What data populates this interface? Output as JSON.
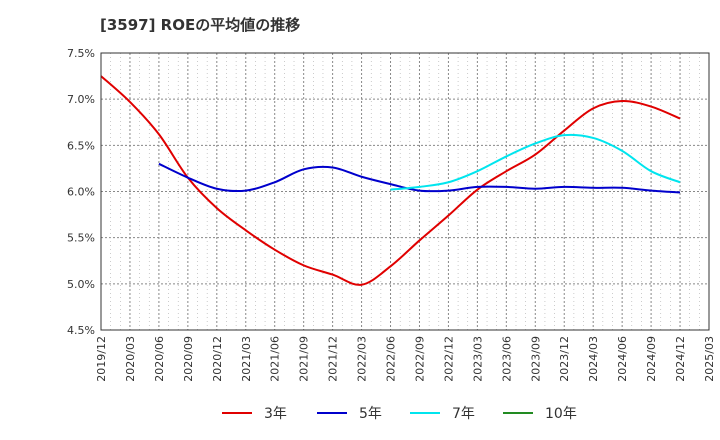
{
  "chart_data": {
    "type": "line",
    "title": "[3597]  ROEの平均値の推移",
    "xlabel": "",
    "ylabel": "",
    "ylim": [
      4.5,
      7.5
    ],
    "y_ticks": [
      "4.5%",
      "5.0%",
      "5.5%",
      "6.0%",
      "6.5%",
      "7.0%",
      "7.5%"
    ],
    "x_ticks": [
      "2019/12",
      "2020/03",
      "2020/06",
      "2020/09",
      "2020/12",
      "2021/03",
      "2021/06",
      "2021/09",
      "2021/12",
      "2022/03",
      "2022/06",
      "2022/09",
      "2022/12",
      "2023/03",
      "2023/06",
      "2023/09",
      "2023/12",
      "2024/03",
      "2024/06",
      "2024/09",
      "2024/12",
      "2025/03"
    ],
    "grid": true,
    "legend_position": "bottom",
    "series": [
      {
        "name": "3年",
        "color": "#e00000",
        "x": [
          "2019/12",
          "2020/03",
          "2020/06",
          "2020/09",
          "2020/12",
          "2021/03",
          "2021/06",
          "2021/09",
          "2021/12",
          "2022/03",
          "2022/06",
          "2022/09",
          "2022/12",
          "2023/03",
          "2023/06",
          "2023/09",
          "2023/12",
          "2024/03",
          "2024/06",
          "2024/09",
          "2024/12"
        ],
        "values": [
          7.25,
          6.97,
          6.62,
          6.15,
          5.82,
          5.58,
          5.37,
          5.2,
          5.1,
          4.99,
          5.19,
          5.47,
          5.74,
          6.02,
          6.22,
          6.4,
          6.66,
          6.9,
          6.98,
          6.92,
          6.79
        ]
      },
      {
        "name": "5年",
        "color": "#0000cc",
        "x": [
          "2020/06",
          "2020/09",
          "2020/12",
          "2021/03",
          "2021/06",
          "2021/09",
          "2021/12",
          "2022/03",
          "2022/06",
          "2022/09",
          "2022/12",
          "2023/03",
          "2023/06",
          "2023/09",
          "2023/12",
          "2024/03",
          "2024/06",
          "2024/09",
          "2024/12"
        ],
        "values": [
          6.3,
          6.15,
          6.03,
          6.01,
          6.1,
          6.24,
          6.26,
          6.16,
          6.08,
          6.01,
          6.01,
          6.05,
          6.05,
          6.03,
          6.05,
          6.04,
          6.04,
          6.01,
          5.99
        ]
      },
      {
        "name": "7年",
        "color": "#00e5ee",
        "x": [
          "2022/06",
          "2022/09",
          "2022/12",
          "2023/03",
          "2023/06",
          "2023/09",
          "2023/12",
          "2024/03",
          "2024/06",
          "2024/09",
          "2024/12"
        ],
        "values": [
          6.02,
          6.05,
          6.1,
          6.22,
          6.38,
          6.52,
          6.61,
          6.58,
          6.44,
          6.22,
          6.1
        ]
      },
      {
        "name": "10年",
        "color": "#228b22",
        "x": [],
        "values": []
      }
    ]
  }
}
